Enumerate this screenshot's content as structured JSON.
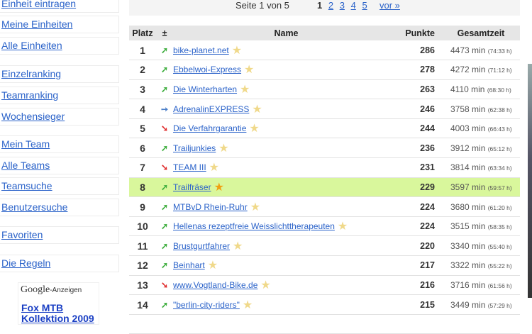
{
  "sidebar": {
    "items": [
      {
        "label": "Einheit eintragen"
      },
      {
        "label": "Meine Einheiten"
      },
      {
        "label": "Alle Einheiten"
      },
      {
        "label": "Einzelranking"
      },
      {
        "label": "Teamranking"
      },
      {
        "label": "Wochensieger"
      },
      {
        "label": "Mein Team"
      },
      {
        "label": "Alle Teams"
      },
      {
        "label": "Teamsuche"
      },
      {
        "label": "Benutzersuche"
      },
      {
        "label": "Favoriten"
      },
      {
        "label": "Die Regeln"
      }
    ]
  },
  "ad": {
    "brand": "Google",
    "suffix": "-Anzeigen",
    "link": "Fox MTB Kollektion 2009"
  },
  "pager": {
    "info": "Seite 1 von 5",
    "current": "1",
    "pages": [
      "2",
      "3",
      "4",
      "5"
    ],
    "next": "vor »"
  },
  "table": {
    "headers": {
      "rank": "Platz",
      "change": "±",
      "name": "Name",
      "points": "Punkte",
      "time": "Gesamtzeit"
    },
    "rows": [
      {
        "rank": "1",
        "trend": "up",
        "name": "bike-planet.net",
        "points": "286",
        "min": "4473 min",
        "hours": "(74:33 h)"
      },
      {
        "rank": "2",
        "trend": "up",
        "name": "Ebbelwoi-Express",
        "points": "278",
        "min": "4272 min",
        "hours": "(71:12 h)"
      },
      {
        "rank": "3",
        "trend": "up",
        "name": "Die Winterharten",
        "points": "263",
        "min": "4110 min",
        "hours": "(68:30 h)"
      },
      {
        "rank": "4",
        "trend": "same",
        "name": "AdrenalinEXPRESS",
        "points": "246",
        "min": "3758 min",
        "hours": "(62:38 h)"
      },
      {
        "rank": "5",
        "trend": "down",
        "name": "Die Verfahrgarantie",
        "points": "244",
        "min": "4003 min",
        "hours": "(66:43 h)"
      },
      {
        "rank": "6",
        "trend": "up",
        "name": "Trailjunkies",
        "points": "236",
        "min": "3912 min",
        "hours": "(65:12 h)"
      },
      {
        "rank": "7",
        "trend": "down",
        "name": "TEAM III",
        "points": "231",
        "min": "3814 min",
        "hours": "(63:34 h)"
      },
      {
        "rank": "8",
        "trend": "up",
        "name": "Trailfräser",
        "points": "229",
        "min": "3597 min",
        "hours": "(59:57 h)",
        "highlight": true
      },
      {
        "rank": "9",
        "trend": "up",
        "name": "MTBvD Rhein-Ruhr",
        "points": "224",
        "min": "3680 min",
        "hours": "(61:20 h)"
      },
      {
        "rank": "10",
        "trend": "up",
        "name": "Hellenas rezeptfreie Weisslichttherapeuten",
        "points": "224",
        "min": "3515 min",
        "hours": "(58:35 h)"
      },
      {
        "rank": "11",
        "trend": "up",
        "name": "Brustgurtfahrer",
        "points": "220",
        "min": "3340 min",
        "hours": "(55:40 h)"
      },
      {
        "rank": "12",
        "trend": "up",
        "name": "Beinhart",
        "points": "217",
        "min": "3322 min",
        "hours": "(55:22 h)"
      },
      {
        "rank": "13",
        "trend": "down",
        "name": "www.Vogtland-Bike.de",
        "points": "216",
        "min": "3716 min",
        "hours": "(61:56 h)"
      },
      {
        "rank": "14",
        "trend": "up",
        "name": "\"berlin-city-riders\"",
        "points": "215",
        "min": "3449 min",
        "hours": "(57:29 h)"
      }
    ]
  },
  "colors": {
    "link": "#2a62c9",
    "highlight": "#d9f79c",
    "up": "#3fae3f",
    "down": "#e03030",
    "same": "#4a7ec8"
  }
}
